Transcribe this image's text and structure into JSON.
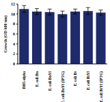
{
  "chart_data": {
    "type": "bar",
    "y_label": "Growth (OD 600 nm)",
    "categories": [
      "DH5-alpha",
      "E. coli Bn",
      "E. coli BnYf",
      "E. coli BnYf (IPTG)",
      "E. coli Bt",
      "E. coli BtYf",
      "E. coli BtYf (IPTG)"
    ],
    "values": [
      11.0,
      10.5,
      10.4,
      10.0,
      10.5,
      10.6,
      10.3
    ],
    "errors": [
      0.7,
      0.6,
      0.6,
      0.6,
      0.5,
      0.7,
      0.5
    ],
    "color": "#1f2a6b",
    "ylim": [
      0,
      12
    ],
    "yticks": [
      0,
      2,
      4,
      6,
      8,
      10,
      12
    ],
    "grid": false
  }
}
